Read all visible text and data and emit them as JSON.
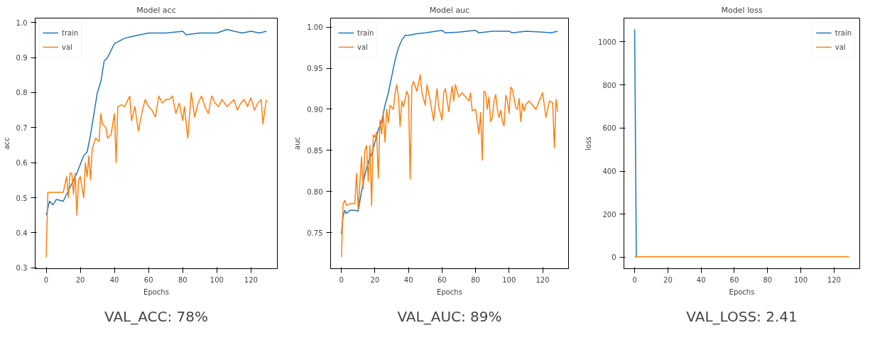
{
  "chart_data": [
    {
      "type": "line",
      "title": "Model acc",
      "xlabel": "Epochs",
      "ylabel": "acc",
      "xlim": [
        -6.45,
        135.45
      ],
      "ylim": [
        0.2975,
        1.0125
      ],
      "xticks": [
        0,
        20,
        40,
        60,
        80,
        100,
        120
      ],
      "yticks": [
        0.3,
        0.4,
        0.5,
        0.6,
        0.7,
        0.8,
        0.9,
        {
          "value": 1.0,
          "label": "1.0"
        }
      ],
      "legend": "top left",
      "grid": false,
      "annotations": [
        "VAL_ACC: 78%"
      ],
      "series": [
        {
          "name": "train",
          "color": "#1f77b4",
          "x": [
            0,
            2,
            4,
            6,
            10,
            14,
            18,
            22,
            24,
            26,
            28,
            30,
            32,
            34,
            36,
            38,
            40,
            42,
            44,
            46,
            50,
            55,
            60,
            70,
            80,
            82,
            90,
            100,
            106,
            110,
            115,
            120,
            125,
            129
          ],
          "values": [
            0.45,
            0.49,
            0.48,
            0.495,
            0.49,
            0.53,
            0.57,
            0.62,
            0.63,
            0.68,
            0.74,
            0.8,
            0.83,
            0.89,
            0.9,
            0.92,
            0.94,
            0.945,
            0.95,
            0.955,
            0.96,
            0.965,
            0.97,
            0.97,
            0.975,
            0.965,
            0.97,
            0.97,
            0.98,
            0.975,
            0.97,
            0.975,
            0.97,
            0.975
          ]
        },
        {
          "name": "val",
          "color": "#ff7f0e",
          "x": [
            0,
            1,
            10,
            12,
            13,
            14,
            15,
            16,
            17,
            18,
            19,
            20,
            22,
            23,
            24,
            25,
            26,
            27,
            29,
            31,
            32,
            33,
            35,
            36,
            38,
            40,
            41,
            42,
            44,
            46,
            49,
            50,
            52,
            54,
            56,
            58,
            60,
            62,
            64,
            66,
            68,
            70,
            72,
            74,
            76,
            78,
            80,
            81,
            83,
            85,
            87,
            89,
            91,
            93,
            95,
            97,
            99,
            101,
            103,
            106,
            108,
            110,
            112,
            114,
            116,
            118,
            120,
            122,
            124,
            126,
            127,
            129
          ],
          "values": [
            0.33,
            0.515,
            0.515,
            0.56,
            0.5,
            0.57,
            0.57,
            0.51,
            0.57,
            0.45,
            0.55,
            0.56,
            0.5,
            0.6,
            0.56,
            0.62,
            0.55,
            0.64,
            0.67,
            0.66,
            0.74,
            0.71,
            0.7,
            0.67,
            0.68,
            0.74,
            0.6,
            0.76,
            0.765,
            0.76,
            0.79,
            0.72,
            0.76,
            0.69,
            0.74,
            0.78,
            0.76,
            0.75,
            0.73,
            0.79,
            0.77,
            0.78,
            0.78,
            0.79,
            0.74,
            0.77,
            0.72,
            0.76,
            0.67,
            0.8,
            0.73,
            0.77,
            0.79,
            0.76,
            0.74,
            0.79,
            0.77,
            0.76,
            0.78,
            0.76,
            0.77,
            0.78,
            0.75,
            0.77,
            0.78,
            0.76,
            0.785,
            0.75,
            0.77,
            0.78,
            0.71,
            0.78
          ]
        }
      ]
    },
    {
      "type": "line",
      "title": "Model auc",
      "xlabel": "Epochs",
      "ylabel": "auc",
      "xlim": [
        -6.45,
        135.45
      ],
      "ylim": [
        0.706,
        1.011
      ],
      "xticks": [
        0,
        20,
        40,
        60,
        80,
        100,
        120
      ],
      "yticks": [
        0.75,
        {
          "value": 0.8,
          "label": "0.80"
        },
        0.85,
        {
          "value": 0.9,
          "label": "0.90"
        },
        0.95,
        {
          "value": 1.0,
          "label": "1.00"
        }
      ],
      "legend": "top left",
      "grid": false,
      "annotations": [
        "VAL_AUC: 89%"
      ],
      "series": [
        {
          "name": "train",
          "color": "#1f77b4",
          "x": [
            0,
            1,
            2,
            3,
            5,
            8,
            10,
            12,
            14,
            16,
            18,
            20,
            22,
            24,
            26,
            28,
            30,
            32,
            34,
            36,
            38,
            40,
            45,
            50,
            60,
            62,
            70,
            80,
            82,
            90,
            100,
            102,
            110,
            120,
            125,
            129
          ],
          "values": [
            0.748,
            0.77,
            0.777,
            0.773,
            0.777,
            0.777,
            0.776,
            0.8,
            0.82,
            0.836,
            0.845,
            0.86,
            0.875,
            0.885,
            0.905,
            0.92,
            0.94,
            0.96,
            0.975,
            0.984,
            0.99,
            0.99,
            0.992,
            0.993,
            0.996,
            0.993,
            0.994,
            0.996,
            0.993,
            0.995,
            0.995,
            0.993,
            0.995,
            0.994,
            0.993,
            0.995
          ]
        },
        {
          "name": "val",
          "color": "#ff7f0e",
          "x": [
            0,
            1,
            2,
            3,
            5,
            8,
            9,
            10,
            12,
            13,
            14,
            15,
            16,
            17,
            18,
            19,
            20,
            21,
            22,
            23,
            24,
            25,
            26,
            27,
            28,
            29,
            31,
            32,
            33,
            34,
            35,
            36,
            37,
            39,
            40,
            41,
            42,
            43,
            45,
            47,
            48,
            50,
            51,
            53,
            55,
            57,
            58,
            60,
            61,
            62,
            64,
            66,
            67,
            68,
            70,
            72,
            74,
            76,
            77,
            78,
            80,
            82,
            83,
            84,
            85,
            86,
            87,
            88,
            89,
            90,
            91,
            92,
            93,
            94,
            95,
            96,
            97,
            98,
            99,
            100,
            101,
            102,
            104,
            105,
            106,
            107,
            108,
            109,
            110,
            112,
            114,
            116,
            118,
            120,
            122,
            124,
            126,
            127,
            128,
            129
          ],
          "values": [
            0.72,
            0.785,
            0.789,
            0.783,
            0.785,
            0.785,
            0.822,
            0.778,
            0.842,
            0.803,
            0.85,
            0.856,
            0.812,
            0.856,
            0.783,
            0.869,
            0.866,
            0.872,
            0.816,
            0.887,
            0.87,
            0.895,
            0.86,
            0.9,
            0.884,
            0.905,
            0.9,
            0.92,
            0.93,
            0.915,
            0.879,
            0.91,
            0.903,
            0.922,
            0.916,
            0.815,
            0.928,
            0.934,
            0.922,
            0.942,
            0.92,
            0.905,
            0.93,
            0.91,
            0.886,
            0.925,
            0.903,
            0.887,
            0.92,
            0.925,
            0.897,
            0.928,
            0.91,
            0.93,
            0.915,
            0.92,
            0.915,
            0.91,
            0.92,
            0.898,
            0.9,
            0.87,
            0.896,
            0.838,
            0.922,
            0.92,
            0.9,
            0.915,
            0.885,
            0.89,
            0.91,
            0.918,
            0.9,
            0.89,
            0.899,
            0.885,
            0.88,
            0.917,
            0.91,
            0.895,
            0.927,
            0.924,
            0.902,
            0.9,
            0.913,
            0.885,
            0.907,
            0.898,
            0.906,
            0.91,
            0.905,
            0.9,
            0.91,
            0.92,
            0.89,
            0.91,
            0.908,
            0.853,
            0.912,
            0.897
          ]
        }
      ]
    },
    {
      "type": "line",
      "title": "Model loss",
      "xlabel": "Epochs",
      "ylabel": "loss",
      "xlim": [
        -6.45,
        135.45
      ],
      "ylim": [
        -53,
        1110
      ],
      "xticks": [
        0,
        20,
        40,
        60,
        80,
        100,
        120
      ],
      "yticks": [
        0,
        200,
        400,
        600,
        800,
        1000
      ],
      "legend": "top right",
      "grid": false,
      "annotations": [
        "VAL_LOSS: 2.41"
      ],
      "series": [
        {
          "name": "train",
          "color": "#1f77b4",
          "x": [
            0,
            1
          ],
          "values": [
            1057,
            0
          ]
        },
        {
          "name": "val",
          "color": "#ff7f0e",
          "x": [
            0,
            1,
            20,
            40,
            60,
            80,
            100,
            120,
            129
          ],
          "values": [
            2,
            2,
            2,
            2,
            2,
            2,
            2,
            2,
            2
          ]
        }
      ]
    }
  ]
}
